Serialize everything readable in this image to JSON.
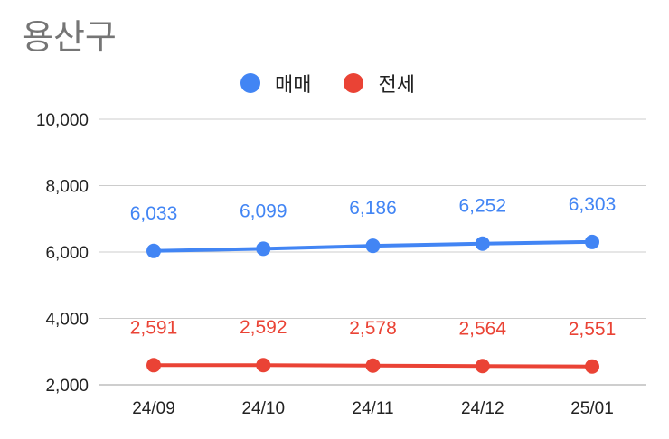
{
  "chart_data": {
    "type": "line",
    "title": "용산구",
    "categories": [
      "24/09",
      "24/10",
      "24/11",
      "24/12",
      "25/01"
    ],
    "series": [
      {
        "name": "매매",
        "color": "#4285f4",
        "values": [
          6033,
          6099,
          6186,
          6252,
          6303
        ],
        "labels": [
          "6,033",
          "6,099",
          "6,186",
          "6,252",
          "6,303"
        ]
      },
      {
        "name": "전세",
        "color": "#ea4335",
        "values": [
          2591,
          2592,
          2578,
          2564,
          2551
        ],
        "labels": [
          "2,591",
          "2,592",
          "2,578",
          "2,564",
          "2,551"
        ]
      }
    ],
    "ylim": [
      2000,
      10000
    ],
    "yticks": [
      2000,
      4000,
      6000,
      8000,
      10000
    ],
    "ytick_labels": [
      "2,000",
      "4,000",
      "6,000",
      "8,000",
      "10,000"
    ],
    "grid": true,
    "legend_position": "top"
  }
}
